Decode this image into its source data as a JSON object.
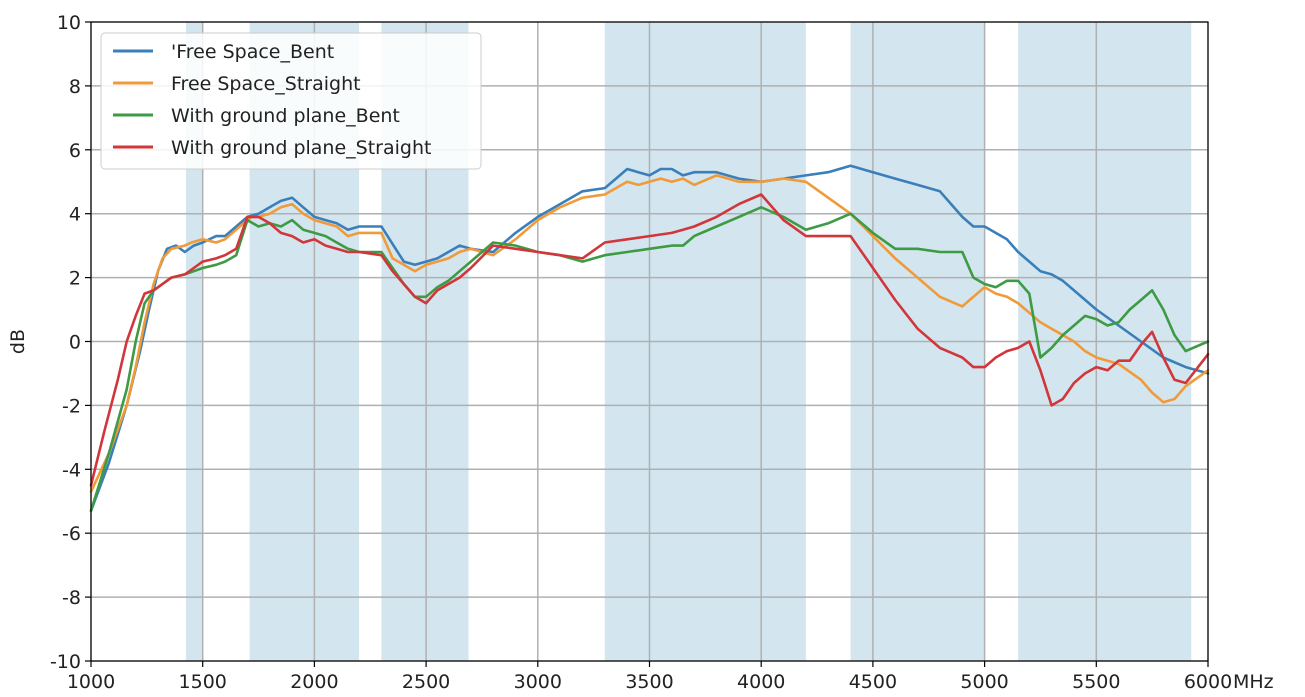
{
  "chart_data": {
    "type": "line",
    "title": "",
    "xlabel": "",
    "x_unit": "MHz",
    "ylabel": "dB",
    "xlim": [
      1000,
      6000
    ],
    "ylim": [
      -10,
      10
    ],
    "x_ticks": [
      "1000",
      "1500",
      "2000",
      "2500",
      "3000",
      "3500",
      "4000",
      "4500",
      "5000",
      "5500",
      "6000"
    ],
    "y_ticks": [
      "-10",
      "-8",
      "-6",
      "-4",
      "-2",
      "0",
      "2",
      "4",
      "6",
      "8",
      "10"
    ],
    "grid": true,
    "legend_position": "top-left",
    "shaded_bands": [
      [
        1425,
        1500
      ],
      [
        1710,
        2200
      ],
      [
        2300,
        2690
      ],
      [
        3300,
        4200
      ],
      [
        4400,
        5000
      ],
      [
        5150,
        5925
      ]
    ],
    "band_color": "#d3e6ef",
    "series": [
      {
        "name": "'Free Space_Bent",
        "color": "#3b7fba",
        "x": [
          1000,
          1080,
          1160,
          1220,
          1260,
          1300,
          1340,
          1380,
          1420,
          1460,
          1500,
          1560,
          1600,
          1650,
          1700,
          1750,
          1800,
          1850,
          1900,
          1950,
          2000,
          2050,
          2100,
          2150,
          2200,
          2300,
          2400,
          2450,
          2500,
          2550,
          2600,
          2650,
          2700,
          2800,
          2900,
          3000,
          3100,
          3200,
          3300,
          3350,
          3400,
          3450,
          3500,
          3550,
          3600,
          3650,
          3700,
          3800,
          3900,
          4000,
          4100,
          4200,
          4300,
          4400,
          4500,
          4600,
          4700,
          4800,
          4850,
          4900,
          4950,
          5000,
          5100,
          5150,
          5200,
          5250,
          5300,
          5350,
          5400,
          5500,
          5600,
          5700,
          5800,
          5900,
          6000
        ],
        "values": [
          -5.3,
          -3.8,
          -2.0,
          -0.3,
          1.0,
          2.2,
          2.9,
          3.0,
          2.8,
          3.0,
          3.1,
          3.3,
          3.3,
          3.6,
          3.9,
          4.0,
          4.2,
          4.4,
          4.5,
          4.2,
          3.9,
          3.8,
          3.7,
          3.5,
          3.6,
          3.6,
          2.5,
          2.4,
          2.5,
          2.6,
          2.8,
          3.0,
          2.9,
          2.8,
          3.4,
          3.9,
          4.3,
          4.7,
          4.8,
          5.1,
          5.4,
          5.3,
          5.2,
          5.4,
          5.4,
          5.2,
          5.3,
          5.3,
          5.1,
          5.0,
          5.1,
          5.2,
          5.3,
          5.5,
          5.3,
          5.1,
          4.9,
          4.7,
          4.3,
          3.9,
          3.6,
          3.6,
          3.2,
          2.8,
          2.5,
          2.2,
          2.1,
          1.9,
          1.6,
          1.0,
          0.5,
          0.0,
          -0.5,
          -0.8,
          -1.0
        ]
      },
      {
        "name": "Free Space_Straight",
        "color": "#f09a3a",
        "x": [
          1000,
          1080,
          1160,
          1200,
          1240,
          1280,
          1320,
          1360,
          1420,
          1450,
          1500,
          1560,
          1600,
          1650,
          1700,
          1720,
          1750,
          1800,
          1850,
          1900,
          1950,
          2000,
          2100,
          2150,
          2200,
          2300,
          2350,
          2400,
          2450,
          2500,
          2550,
          2600,
          2650,
          2700,
          2800,
          2900,
          3000,
          3100,
          3200,
          3300,
          3350,
          3400,
          3450,
          3500,
          3550,
          3600,
          3650,
          3700,
          3800,
          3900,
          4000,
          4100,
          4200,
          4300,
          4400,
          4500,
          4600,
          4700,
          4800,
          4900,
          5000,
          5050,
          5100,
          5150,
          5200,
          5250,
          5300,
          5400,
          5450,
          5500,
          5550,
          5600,
          5700,
          5750,
          5800,
          5850,
          5900,
          6000
        ],
        "values": [
          -4.7,
          -3.5,
          -2.0,
          -0.8,
          0.6,
          1.8,
          2.6,
          2.9,
          3.0,
          3.1,
          3.2,
          3.1,
          3.2,
          3.5,
          3.8,
          3.9,
          3.9,
          4.0,
          4.2,
          4.3,
          4.0,
          3.8,
          3.6,
          3.3,
          3.4,
          3.4,
          2.6,
          2.4,
          2.2,
          2.4,
          2.5,
          2.6,
          2.8,
          2.9,
          2.7,
          3.2,
          3.8,
          4.2,
          4.5,
          4.6,
          4.8,
          5.0,
          4.9,
          5.0,
          5.1,
          5.0,
          5.1,
          4.9,
          5.2,
          5.0,
          5.0,
          5.1,
          5.0,
          4.5,
          4.0,
          3.3,
          2.6,
          2.0,
          1.4,
          1.1,
          1.7,
          1.5,
          1.4,
          1.2,
          0.9,
          0.6,
          0.4,
          0.0,
          -0.3,
          -0.5,
          -0.6,
          -0.7,
          -1.2,
          -1.6,
          -1.9,
          -1.8,
          -1.4,
          -0.9
        ]
      },
      {
        "name": "With ground plane_Bent",
        "color": "#3e9a43",
        "x": [
          1000,
          1080,
          1160,
          1200,
          1240,
          1280,
          1320,
          1360,
          1420,
          1460,
          1500,
          1560,
          1600,
          1650,
          1700,
          1750,
          1800,
          1850,
          1900,
          1950,
          2000,
          2050,
          2100,
          2150,
          2200,
          2300,
          2400,
          2450,
          2500,
          2550,
          2600,
          2650,
          2700,
          2800,
          2900,
          3000,
          3100,
          3200,
          3300,
          3400,
          3500,
          3600,
          3650,
          3700,
          3800,
          3900,
          4000,
          4100,
          4200,
          4300,
          4400,
          4500,
          4600,
          4700,
          4800,
          4900,
          4950,
          5000,
          5050,
          5100,
          5150,
          5200,
          5250,
          5300,
          5350,
          5400,
          5450,
          5500,
          5550,
          5600,
          5650,
          5700,
          5750,
          5800,
          5850,
          5900,
          6000
        ],
        "values": [
          -5.3,
          -3.5,
          -1.5,
          0.0,
          1.2,
          1.6,
          1.8,
          2.0,
          2.1,
          2.2,
          2.3,
          2.4,
          2.5,
          2.7,
          3.8,
          3.6,
          3.7,
          3.6,
          3.8,
          3.5,
          3.4,
          3.3,
          3.1,
          2.9,
          2.8,
          2.8,
          1.8,
          1.4,
          1.4,
          1.7,
          1.9,
          2.2,
          2.5,
          3.1,
          3.0,
          2.8,
          2.7,
          2.5,
          2.7,
          2.8,
          2.9,
          3.0,
          3.0,
          3.3,
          3.6,
          3.9,
          4.2,
          3.9,
          3.5,
          3.7,
          4.0,
          3.4,
          2.9,
          2.9,
          2.8,
          2.8,
          2.0,
          1.8,
          1.7,
          1.9,
          1.9,
          1.5,
          -0.5,
          -0.2,
          0.2,
          0.5,
          0.8,
          0.7,
          0.5,
          0.6,
          1.0,
          1.3,
          1.6,
          1.0,
          0.2,
          -0.3,
          0.0
        ]
      },
      {
        "name": "With ground plane_Straight",
        "color": "#d1363a",
        "x": [
          1000,
          1060,
          1120,
          1160,
          1200,
          1240,
          1280,
          1320,
          1360,
          1420,
          1460,
          1500,
          1560,
          1600,
          1650,
          1700,
          1750,
          1800,
          1850,
          1900,
          1950,
          2000,
          2050,
          2100,
          2150,
          2200,
          2300,
          2350,
          2400,
          2450,
          2500,
          2550,
          2600,
          2650,
          2700,
          2800,
          2900,
          3000,
          3100,
          3200,
          3300,
          3400,
          3500,
          3600,
          3650,
          3700,
          3800,
          3900,
          4000,
          4100,
          4200,
          4300,
          4400,
          4500,
          4600,
          4700,
          4800,
          4900,
          4950,
          5000,
          5050,
          5100,
          5150,
          5200,
          5250,
          5300,
          5350,
          5400,
          5450,
          5500,
          5550,
          5600,
          5650,
          5700,
          5750,
          5800,
          5850,
          5900,
          6000
        ],
        "values": [
          -4.5,
          -2.8,
          -1.2,
          0.0,
          0.8,
          1.5,
          1.6,
          1.8,
          2.0,
          2.1,
          2.3,
          2.5,
          2.6,
          2.7,
          2.9,
          3.9,
          3.9,
          3.7,
          3.4,
          3.3,
          3.1,
          3.2,
          3.0,
          2.9,
          2.8,
          2.8,
          2.7,
          2.2,
          1.8,
          1.4,
          1.2,
          1.6,
          1.8,
          2.0,
          2.3,
          3.0,
          2.9,
          2.8,
          2.7,
          2.6,
          3.1,
          3.2,
          3.3,
          3.4,
          3.5,
          3.6,
          3.9,
          4.3,
          4.6,
          3.8,
          3.3,
          3.3,
          3.3,
          2.3,
          1.3,
          0.4,
          -0.2,
          -0.5,
          -0.8,
          -0.8,
          -0.5,
          -0.3,
          -0.2,
          0.0,
          -0.9,
          -2.0,
          -1.8,
          -1.3,
          -1.0,
          -0.8,
          -0.9,
          -0.6,
          -0.6,
          -0.1,
          0.3,
          -0.5,
          -1.2,
          -1.3,
          -0.4
        ]
      }
    ]
  }
}
